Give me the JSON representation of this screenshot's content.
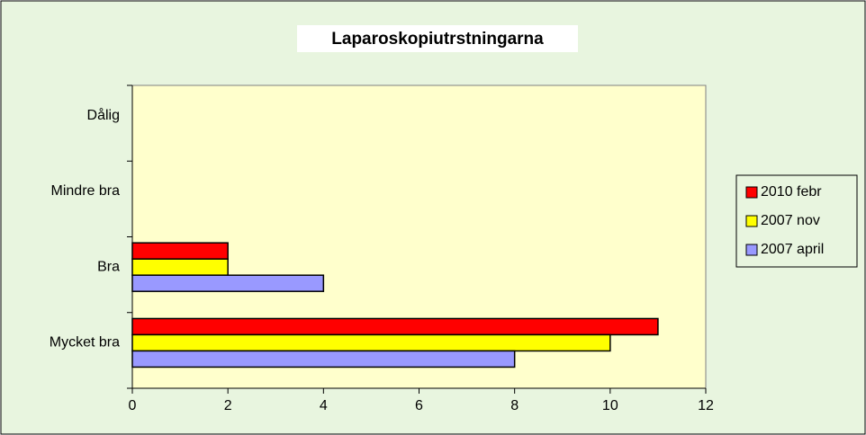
{
  "chart_data": {
    "type": "bar",
    "orientation": "horizontal",
    "title": "Laparoskopiutrstningarna",
    "categories": [
      "Mycket bra",
      "Bra",
      "Mindre bra",
      "Dålig"
    ],
    "series": [
      {
        "name": "2010 febr",
        "color": "#ff0000",
        "values": [
          11,
          2,
          0,
          0
        ]
      },
      {
        "name": "2007 nov",
        "color": "#ffff00",
        "values": [
          10,
          2,
          0,
          0
        ]
      },
      {
        "name": "2007 april",
        "color": "#9999ff",
        "values": [
          8,
          4,
          0,
          0
        ]
      }
    ],
    "xlim": [
      0,
      12
    ],
    "xticks": [
      0,
      2,
      4,
      6,
      8,
      10,
      12
    ],
    "grid": false,
    "legend": "right"
  }
}
